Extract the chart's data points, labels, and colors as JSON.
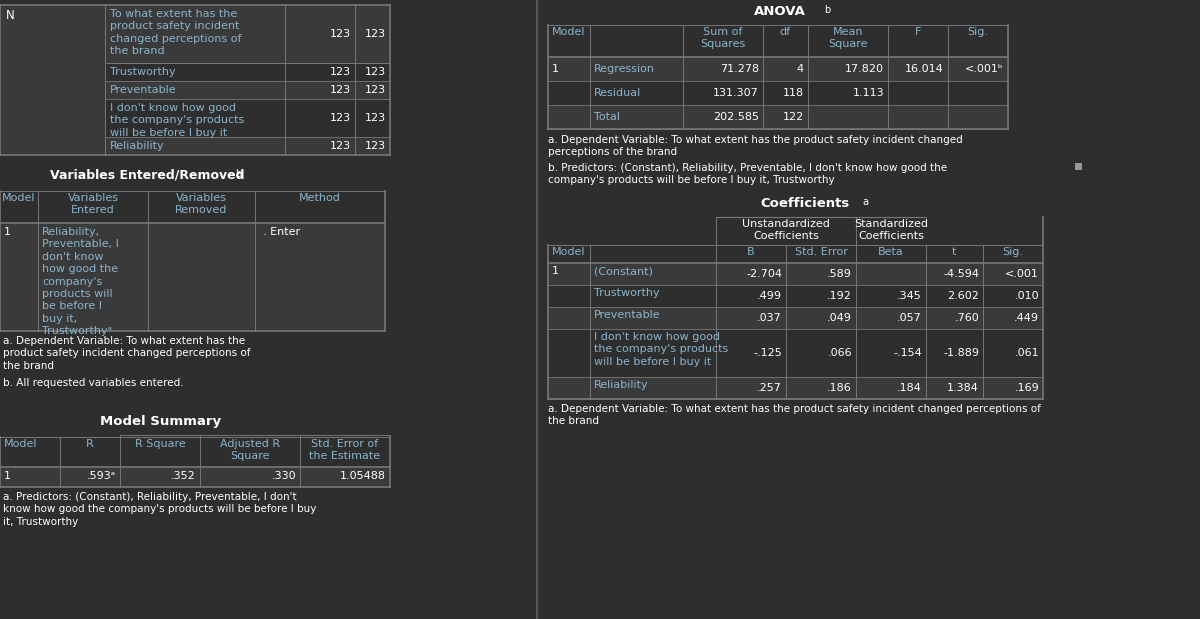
{
  "bg_color": "#2e2e2e",
  "text_color": "#ffffff",
  "header_color": "#8ab4cc",
  "cell_bg_dark": "#3a3a3a",
  "cell_bg_mid": "#333333",
  "border_color": "#777777",
  "n_rows": [
    [
      "To what extent has the\nproduct safety incident\nchanged perceptions of\nthe brand",
      "123",
      "123"
    ],
    [
      "Trustworthy",
      "123",
      "123"
    ],
    [
      "Preventable",
      "123",
      "123"
    ],
    [
      "I don't know how good\nthe company's products\nwill be before I buy it",
      "123",
      "123"
    ],
    [
      "Reliability",
      "123",
      "123"
    ]
  ],
  "n_row_heights": [
    58,
    18,
    18,
    38,
    18
  ],
  "anova_rows": [
    [
      "1",
      "Regression",
      "71.278",
      "4",
      "17.820",
      "16.014",
      "<.001ᵇ"
    ],
    [
      "",
      "Residual",
      "131.307",
      "118",
      "1.113",
      "",
      ""
    ],
    [
      "",
      "Total",
      "202.585",
      "122",
      "",
      "",
      ""
    ]
  ],
  "coeff_rows": [
    [
      "1",
      "(Constant)",
      "-2.704",
      ".589",
      "",
      "-4.594",
      "<.001"
    ],
    [
      "",
      "Trustworthy",
      ".499",
      ".192",
      ".345",
      "2.602",
      ".010"
    ],
    [
      "",
      "Preventable",
      ".037",
      ".049",
      ".057",
      ".760",
      ".449"
    ],
    [
      "",
      "I don't know how good\nthe company's products\nwill be before I buy it",
      "-.125",
      ".066",
      "-.154",
      "-1.889",
      ".061"
    ],
    [
      "",
      "Reliability",
      ".257",
      ".186",
      ".184",
      "1.384",
      ".169"
    ]
  ],
  "coeff_row_heights": [
    22,
    22,
    22,
    48,
    22
  ]
}
